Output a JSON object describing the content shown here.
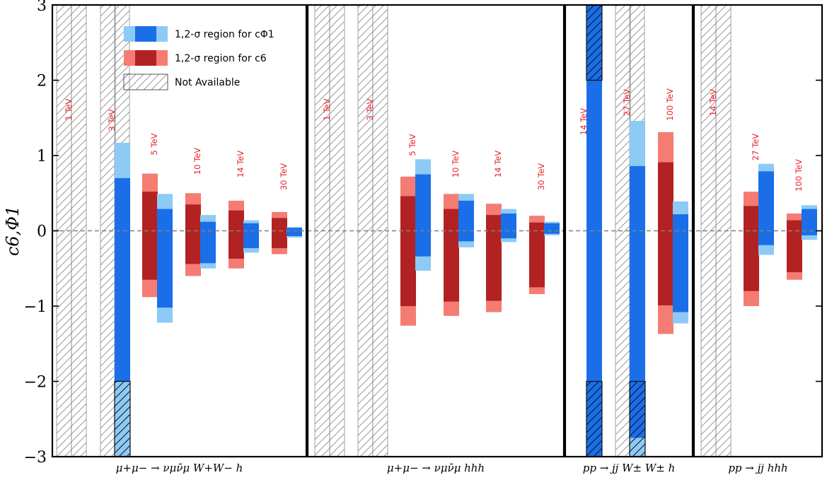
{
  "chart_data": {
    "type": "bar",
    "ylabel": "c6,Φ1",
    "ylim": [
      -3,
      3
    ],
    "yticks": [
      -3,
      -2,
      -1,
      0,
      1,
      2,
      3
    ],
    "ytick_labels": [
      "−3",
      "−2",
      "−1",
      "0",
      "1",
      "2",
      "3"
    ],
    "reference_line": 0,
    "colors": {
      "c6_1sigma": "#b22222",
      "c6_2sigma": "#f47c72",
      "cphi_1sigma": "#1a6fe8",
      "cphi_2sigma": "#8ecaf6"
    },
    "legend": [
      {
        "label": "1,2-σ region for cΦ1",
        "key": "cphi"
      },
      {
        "label": "1,2-σ region for c6",
        "key": "c6"
      },
      {
        "label": "Not Available",
        "key": "na"
      }
    ],
    "panels": [
      {
        "process": "μ+μ− → νμν̄μ W+W− h",
        "groups": [
          {
            "energy": "1 TeV",
            "available": false
          },
          {
            "energy": "3 TeV",
            "available": true,
            "c6": null,
            "cphi": {
              "one": [
                -2.0,
                0.7
              ],
              "two": [
                -3.0,
                1.17
              ]
            }
          },
          {
            "energy": "5 TeV",
            "available": true,
            "c6": {
              "one": [
                -0.65,
                0.52
              ],
              "two": [
                -0.88,
                0.76
              ]
            },
            "cphi": {
              "one": [
                -1.02,
                0.29
              ],
              "two": [
                -1.22,
                0.49
              ]
            }
          },
          {
            "energy": "10 TeV",
            "available": true,
            "c6": {
              "one": [
                -0.44,
                0.35
              ],
              "two": [
                -0.6,
                0.5
              ]
            },
            "cphi": {
              "one": [
                -0.43,
                0.12
              ],
              "two": [
                -0.5,
                0.21
              ]
            }
          },
          {
            "energy": "14 TeV",
            "available": true,
            "c6": {
              "one": [
                -0.37,
                0.27
              ],
              "two": [
                -0.5,
                0.4
              ]
            },
            "cphi": {
              "one": [
                -0.23,
                0.1
              ],
              "two": [
                -0.29,
                0.14
              ]
            }
          },
          {
            "energy": "30 TeV",
            "available": true,
            "c6": {
              "one": [
                -0.23,
                0.17
              ],
              "two": [
                -0.31,
                0.25
              ]
            },
            "cphi": {
              "one": [
                -0.07,
                0.04
              ],
              "two": [
                -0.09,
                0.05
              ]
            }
          }
        ]
      },
      {
        "process": "μ+μ− → νμν̄μ hhh",
        "groups": [
          {
            "energy": "1 TeV",
            "available": false
          },
          {
            "energy": "3 TeV",
            "available": false
          },
          {
            "energy": "5 TeV",
            "available": true,
            "c6": {
              "one": [
                -1.0,
                0.46
              ],
              "two": [
                -1.26,
                0.72
              ]
            },
            "cphi": {
              "one": [
                -0.34,
                0.75
              ],
              "two": [
                -0.53,
                0.95
              ]
            }
          },
          {
            "energy": "10 TeV",
            "available": true,
            "c6": {
              "one": [
                -0.94,
                0.29
              ],
              "two": [
                -1.13,
                0.49
              ]
            },
            "cphi": {
              "one": [
                -0.14,
                0.4
              ],
              "two": [
                -0.22,
                0.49
              ]
            }
          },
          {
            "energy": "14 TeV",
            "available": true,
            "c6": {
              "one": [
                -0.93,
                0.21
              ],
              "two": [
                -1.08,
                0.36
              ]
            },
            "cphi": {
              "one": [
                -0.1,
                0.23
              ],
              "two": [
                -0.15,
                0.29
              ]
            }
          },
          {
            "energy": "30 TeV",
            "available": true,
            "c6": {
              "one": [
                -0.75,
                0.11
              ],
              "two": [
                -0.84,
                0.2
              ]
            },
            "cphi": {
              "one": [
                -0.04,
                0.1
              ],
              "two": [
                -0.06,
                0.12
              ]
            }
          }
        ]
      },
      {
        "process": "pp → jj W± W± h",
        "groups": [
          {
            "energy": "14 TeV",
            "available": true,
            "c6": null,
            "cphi": {
              "one": [
                -3.0,
                3.0
              ],
              "two": [
                -3.0,
                3.0
              ]
            }
          },
          {
            "energy": "27 TeV",
            "available": true,
            "c6": null,
            "cphi": {
              "one": [
                -2.75,
                0.86
              ],
              "two": [
                -3.0,
                1.46
              ]
            }
          },
          {
            "energy": "100 TeV",
            "available": true,
            "c6": {
              "one": [
                -0.99,
                0.91
              ],
              "two": [
                -1.37,
                1.31
              ]
            },
            "cphi": {
              "one": [
                -1.08,
                0.22
              ],
              "two": [
                -1.23,
                0.39
              ]
            }
          }
        ]
      },
      {
        "process": "pp → jj hhh",
        "groups": [
          {
            "energy": "14 TeV",
            "available": false
          },
          {
            "energy": "27 TeV",
            "available": true,
            "c6": {
              "one": [
                -0.8,
                0.33
              ],
              "two": [
                -1.0,
                0.52
              ]
            },
            "cphi": {
              "one": [
                -0.19,
                0.79
              ],
              "two": [
                -0.32,
                0.89
              ]
            }
          },
          {
            "energy": "100 TeV",
            "available": true,
            "c6": {
              "one": [
                -0.55,
                0.14
              ],
              "two": [
                -0.65,
                0.23
              ]
            },
            "cphi": {
              "one": [
                -0.06,
                0.29
              ],
              "two": [
                -0.12,
                0.34
              ]
            }
          }
        ]
      }
    ]
  }
}
